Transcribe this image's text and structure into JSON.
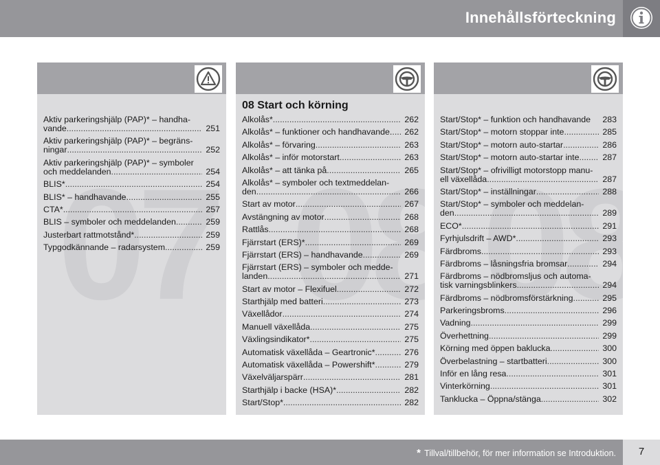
{
  "header": {
    "title": "Innehållsförteckning",
    "info_icon": "info-circle-icon"
  },
  "col1": {
    "icon": "warning-triangle-icon",
    "watermark": "07",
    "entries": [
      {
        "first": "Aktiv parkeringshjälp (PAP)* – handha-",
        "text": "vande",
        "page": "251"
      },
      {
        "first": "Aktiv parkeringshjälp (PAP)* – begräns-",
        "text": "ningar",
        "page": "252"
      },
      {
        "first": "Aktiv parkeringshjälp (PAP)* – symboler",
        "text": "och meddelanden",
        "page": "254"
      },
      {
        "text": "BLIS*",
        "page": "254"
      },
      {
        "text": "BLIS* – handhavande",
        "page": "255"
      },
      {
        "text": "CTA*",
        "page": "257"
      },
      {
        "text": "BLIS – symboler och meddelanden",
        "page": "259"
      },
      {
        "text": "Justerbart rattmotstånd*",
        "page": "259"
      },
      {
        "text": "Typgodkännande – radarsystem",
        "page": "259"
      }
    ]
  },
  "col2": {
    "icon": "steering-wheel-icon",
    "watermark": "08",
    "section_title": "08 Start och körning",
    "entries": [
      {
        "text": "Alkolås*",
        "page": "262"
      },
      {
        "text": "Alkolås* – funktioner och handhavande.",
        "page": "262"
      },
      {
        "text": "Alkolås* – förvaring",
        "page": "263"
      },
      {
        "text": "Alkolås* – inför motorstart",
        "page": "263"
      },
      {
        "text": "Alkolås* – att tänka på",
        "page": "265"
      },
      {
        "first": "Alkolås* – symboler och textmeddelan-",
        "text": "den",
        "page": "266"
      },
      {
        "text": "Start av motor",
        "page": "267"
      },
      {
        "text": "Avstängning av motor",
        "page": "268"
      },
      {
        "text": "Rattlås",
        "page": "268"
      },
      {
        "text": "Fjärrstart (ERS)*",
        "page": "269"
      },
      {
        "text": "Fjärrstart (ERS) – handhavande",
        "page": "269"
      },
      {
        "first": "Fjärrstart (ERS) – symboler och medde-",
        "text": "landen",
        "page": "271"
      },
      {
        "text": "Start av motor – Flexifuel",
        "page": "272"
      },
      {
        "text": "Starthjälp med batteri",
        "page": "273"
      },
      {
        "text": "Växellådor",
        "page": "274"
      },
      {
        "text": "Manuell växellåda",
        "page": "275"
      },
      {
        "text": "Växlingsindikator*",
        "page": "275"
      },
      {
        "text": "Automatisk växellåda – Geartronic*",
        "page": "276"
      },
      {
        "text": "Automatisk växellåda – Powershift*",
        "page": "279"
      },
      {
        "text": "Växelväljarspärr",
        "page": "281"
      },
      {
        "text": "Starthjälp i backe (HSA)*",
        "page": "282"
      },
      {
        "text": "Start/Stop*",
        "page": "282"
      }
    ]
  },
  "col3": {
    "icon": "steering-wheel-icon",
    "watermark": "08",
    "entries": [
      {
        "text": "Start/Stop* – funktion och handhavande",
        "page": "283",
        "nodots": true
      },
      {
        "text": "Start/Stop* – motorn stoppar inte",
        "page": "285"
      },
      {
        "text": "Start/Stop* – motorn auto-startar",
        "page": "286"
      },
      {
        "text": "Start/Stop* – motorn auto-startar inte",
        "page": "287"
      },
      {
        "first": "Start/Stop* – ofrivilligt motorstopp manu-",
        "text": "ell växellåda",
        "page": "287"
      },
      {
        "text": "Start/Stop* – inställningar",
        "page": "288"
      },
      {
        "first": "Start/Stop* – symboler och meddelan-",
        "text": "den",
        "page": "289"
      },
      {
        "text": "ECO*",
        "page": "291"
      },
      {
        "text": "Fyrhjulsdrift – AWD*",
        "page": "293"
      },
      {
        "text": "Färdbroms",
        "page": "293"
      },
      {
        "text": "Färdbroms – låsningsfria bromsar",
        "page": "294"
      },
      {
        "first": "Färdbroms – nödbromsljus och automa-",
        "text": "tisk varningsblinkers",
        "page": "294"
      },
      {
        "text": "Färdbroms – nödbromsförstärkning",
        "page": "295"
      },
      {
        "text": "Parkeringsbroms",
        "page": "296"
      },
      {
        "text": "Vadning",
        "page": "299"
      },
      {
        "text": "Överhettning",
        "page": "299"
      },
      {
        "text": "Körning med öppen baklucka",
        "page": "300"
      },
      {
        "text": "Överbelastning – startbatteri",
        "page": "300"
      },
      {
        "text": "Inför en lång resa",
        "page": "301"
      },
      {
        "text": "Vinterkörning",
        "page": "301"
      },
      {
        "text": "Tanklucka – Öppna/stänga",
        "page": "302"
      }
    ]
  },
  "footer": {
    "star": "*",
    "note": "Tillval/tillbehör, för mer information se Introduktion.",
    "page_number": "7"
  }
}
